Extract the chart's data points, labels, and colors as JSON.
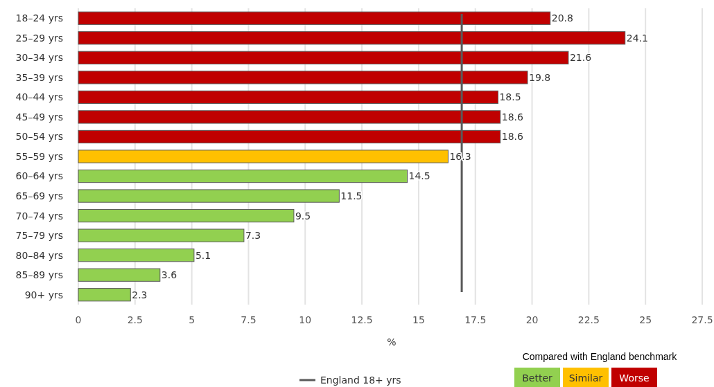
{
  "chart_data": {
    "type": "bar",
    "orientation": "horizontal",
    "xlabel": "%",
    "categories": [
      "18–24 yrs",
      "25–29 yrs",
      "30–34 yrs",
      "35–39 yrs",
      "40–44 yrs",
      "45–49 yrs",
      "50–54 yrs",
      "55–59 yrs",
      "60–64 yrs",
      "65–69 yrs",
      "70–74 yrs",
      "75–79 yrs",
      "80–84 yrs",
      "85–89 yrs",
      "90+ yrs"
    ],
    "series": [
      {
        "name": "Better",
        "color": "#92d050",
        "values": [
          null,
          null,
          null,
          null,
          null,
          null,
          null,
          null,
          14.5,
          11.5,
          9.5,
          7.3,
          5.1,
          3.6,
          2.3
        ]
      },
      {
        "name": "Similar",
        "color": "#ffc000",
        "values": [
          null,
          null,
          null,
          null,
          null,
          null,
          null,
          16.3,
          null,
          null,
          null,
          null,
          null,
          null,
          null
        ]
      },
      {
        "name": "Worse",
        "color": "#c00000",
        "values": [
          20.8,
          24.1,
          21.6,
          19.8,
          18.5,
          18.6,
          18.6,
          null,
          null,
          null,
          null,
          null,
          null,
          null,
          null
        ]
      }
    ],
    "xlim": [
      0,
      27.5
    ],
    "xticks": [
      0,
      2.5,
      5,
      7.5,
      10,
      12.5,
      15,
      17.5,
      20,
      22.5,
      25,
      27.5
    ],
    "grid": "x",
    "data_labels": true,
    "ref_lines": [
      {
        "axis": "x",
        "value": 16.9,
        "label": "England 18+ yrs",
        "color": "#595959"
      }
    ],
    "legend": "bottom",
    "legend_title": "Compared with England benchmark"
  }
}
